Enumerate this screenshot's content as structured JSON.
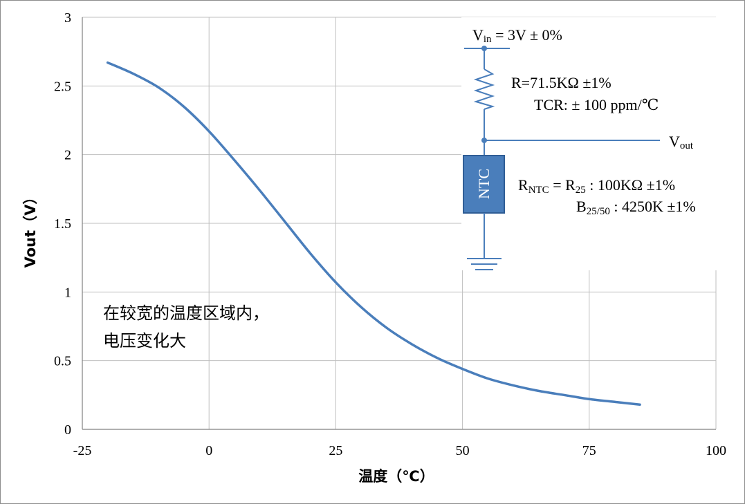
{
  "chart_data": {
    "type": "line",
    "title": "",
    "xlabel": "温度（℃）",
    "ylabel": "Vout（V）",
    "xlim": [
      -25,
      100
    ],
    "ylim": [
      0,
      3
    ],
    "x_ticks": [
      "-25",
      "0",
      "25",
      "50",
      "75",
      "100"
    ],
    "y_ticks": [
      "0",
      "0.5",
      "1",
      "1.5",
      "2",
      "2.5",
      "3"
    ],
    "grid": true,
    "legend": "none",
    "series": [
      {
        "color": "#4a7ebb",
        "x": [
          -20,
          -15,
          -10,
          -5,
          0,
          5,
          10,
          15,
          20,
          25,
          30,
          35,
          40,
          45,
          50,
          55,
          60,
          65,
          70,
          75,
          80,
          85
        ],
        "y": [
          2.67,
          2.59,
          2.49,
          2.35,
          2.17,
          1.96,
          1.74,
          1.51,
          1.28,
          1.07,
          0.89,
          0.74,
          0.62,
          0.52,
          0.44,
          0.37,
          0.32,
          0.28,
          0.25,
          0.22,
          0.2,
          0.18
        ]
      }
    ],
    "annotations": {
      "note_line1": "在较宽的温度区域内，",
      "note_line2": "电压变化大"
    }
  },
  "circuit": {
    "vin_base": "V",
    "vin_sub": "in",
    "vin_value": " = 3V ± 0%",
    "r_line": "R=71.5KΩ ±1%",
    "tcr_line": "TCR: ± 100 ppm/℃",
    "vout_base": "V",
    "vout_sub": "out",
    "ntc_label": "NTC",
    "rntc_base": "R",
    "rntc_sub": "NTC",
    "rntc_eq": " = R",
    "r25_sub": "25",
    "rntc_value": " : 100KΩ ±1%",
    "b_base": "B",
    "b_sub": "25/50",
    "b_value": " : 4250K ±1%"
  },
  "colors": {
    "series": "#4a7ebb",
    "circuit_wire": "#4a7ebb",
    "ntc_fill": "#4a7ebb",
    "ntc_stroke": "#2f5d95",
    "grid": "#bfbfbf",
    "axis": "#808080"
  }
}
